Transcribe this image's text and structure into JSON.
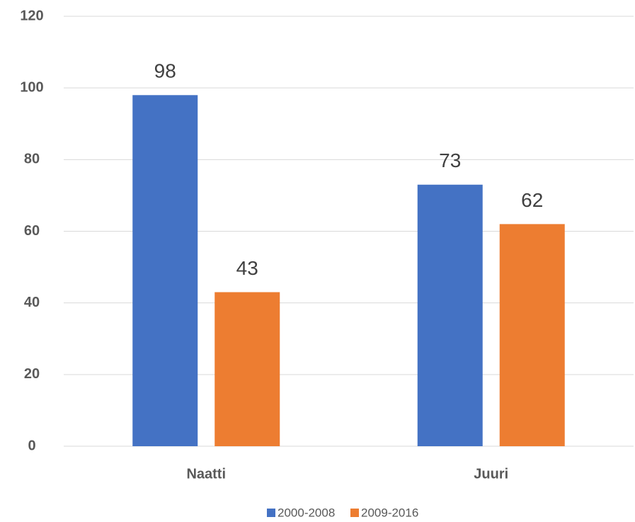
{
  "chart_data": {
    "type": "bar",
    "categories": [
      "Naatti",
      "Juuri"
    ],
    "series": [
      {
        "name": "2000-2008",
        "color": "#4472c4",
        "values": [
          98,
          73
        ]
      },
      {
        "name": "2009-2016",
        "color": "#ed7d31",
        "values": [
          43,
          62
        ]
      }
    ],
    "ylim": [
      0,
      120
    ],
    "yticks": [
      0,
      20,
      40,
      60,
      80,
      100,
      120
    ],
    "grid": true,
    "legend": "bottom"
  }
}
